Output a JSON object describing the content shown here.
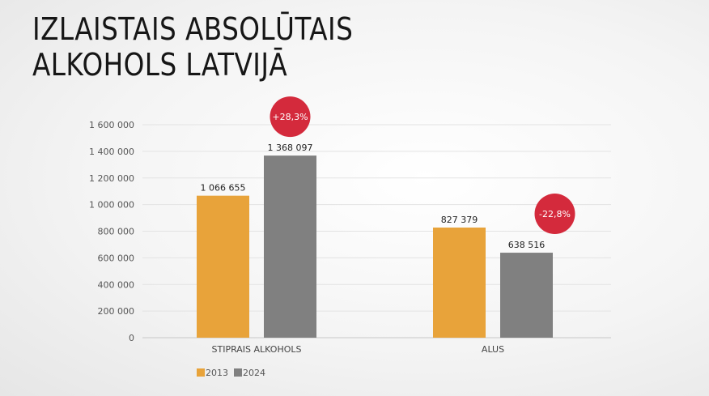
{
  "title_lines": [
    "IZLAISTAIS ABSOLŪTAIS",
    "ALKOHOLS LATVIJĀ"
  ],
  "chart_data": {
    "type": "bar",
    "categories": [
      "STIPRAIS ALKOHOLS",
      "ALUS"
    ],
    "series": [
      {
        "name": "2013",
        "values": [
          1066655,
          827379
        ],
        "labels": [
          "1 066 655",
          "827 379"
        ],
        "color": "#E8A33A"
      },
      {
        "name": "2024",
        "values": [
          1368097,
          638516
        ],
        "labels": [
          "1 368 097",
          "638 516"
        ],
        "color": "#808080"
      }
    ],
    "ylim": [
      0,
      1600000
    ],
    "yticks": [
      0,
      200000,
      400000,
      600000,
      800000,
      1000000,
      1200000,
      1400000,
      1600000
    ],
    "ytick_labels": [
      "0",
      "200 000",
      "400 000",
      "600 000",
      "800 000",
      "1 000 000",
      "1 200 000",
      "1 400 000",
      "1 600 000"
    ],
    "changes": [
      "+28,3%",
      "-22,8%"
    ],
    "badge_color": "#D42A3C",
    "grid": true,
    "legend": "bottom-left"
  }
}
